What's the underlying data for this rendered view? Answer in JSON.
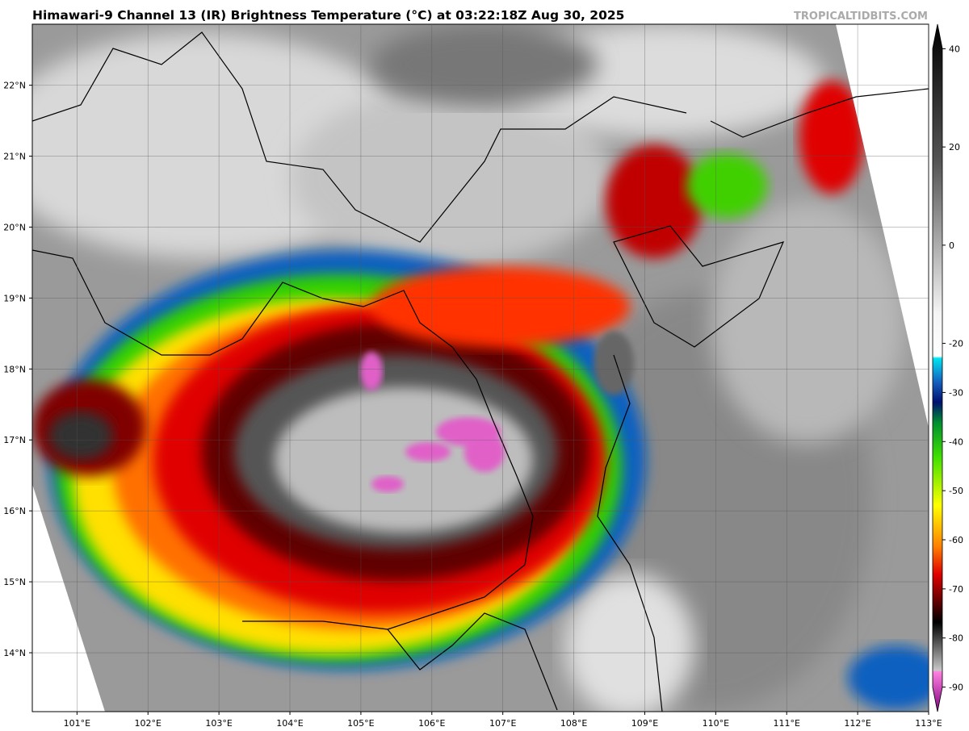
{
  "map": {
    "title": "Himawari-9 Channel 13 (IR) Brightness Temperature (°C) at 03:22:18Z Aug 30, 2025",
    "credit": "TROPICALTIDBITS.COM",
    "xlim": [
      100.37,
      113
    ],
    "ylim": [
      13.17,
      22.86
    ],
    "xticks": [
      {
        "value": 101,
        "label": "101°E"
      },
      {
        "value": 102,
        "label": "102°E"
      },
      {
        "value": 103,
        "label": "103°E"
      },
      {
        "value": 104,
        "label": "104°E"
      },
      {
        "value": 105,
        "label": "105°E"
      },
      {
        "value": 106,
        "label": "106°E"
      },
      {
        "value": 107,
        "label": "107°E"
      },
      {
        "value": 108,
        "label": "108°E"
      },
      {
        "value": 109,
        "label": "109°E"
      },
      {
        "value": 110,
        "label": "110°E"
      },
      {
        "value": 111,
        "label": "111°E"
      },
      {
        "value": 112,
        "label": "112°E"
      },
      {
        "value": 113,
        "label": "113°E"
      }
    ],
    "yticks": [
      {
        "value": 14,
        "label": "14°N"
      },
      {
        "value": 15,
        "label": "15°N"
      },
      {
        "value": 16,
        "label": "16°N"
      },
      {
        "value": 17,
        "label": "17°N"
      },
      {
        "value": 18,
        "label": "18°N"
      },
      {
        "value": 19,
        "label": "19°N"
      },
      {
        "value": 20,
        "label": "20°N"
      },
      {
        "value": 21,
        "label": "21°N"
      },
      {
        "value": 22,
        "label": "22°N"
      }
    ],
    "grid": true,
    "colorbar": {
      "range": [
        -95,
        45
      ],
      "ticks": [
        40,
        20,
        0,
        -20,
        -30,
        -40,
        -50,
        -60,
        -70,
        -80,
        -90
      ]
    }
  }
}
